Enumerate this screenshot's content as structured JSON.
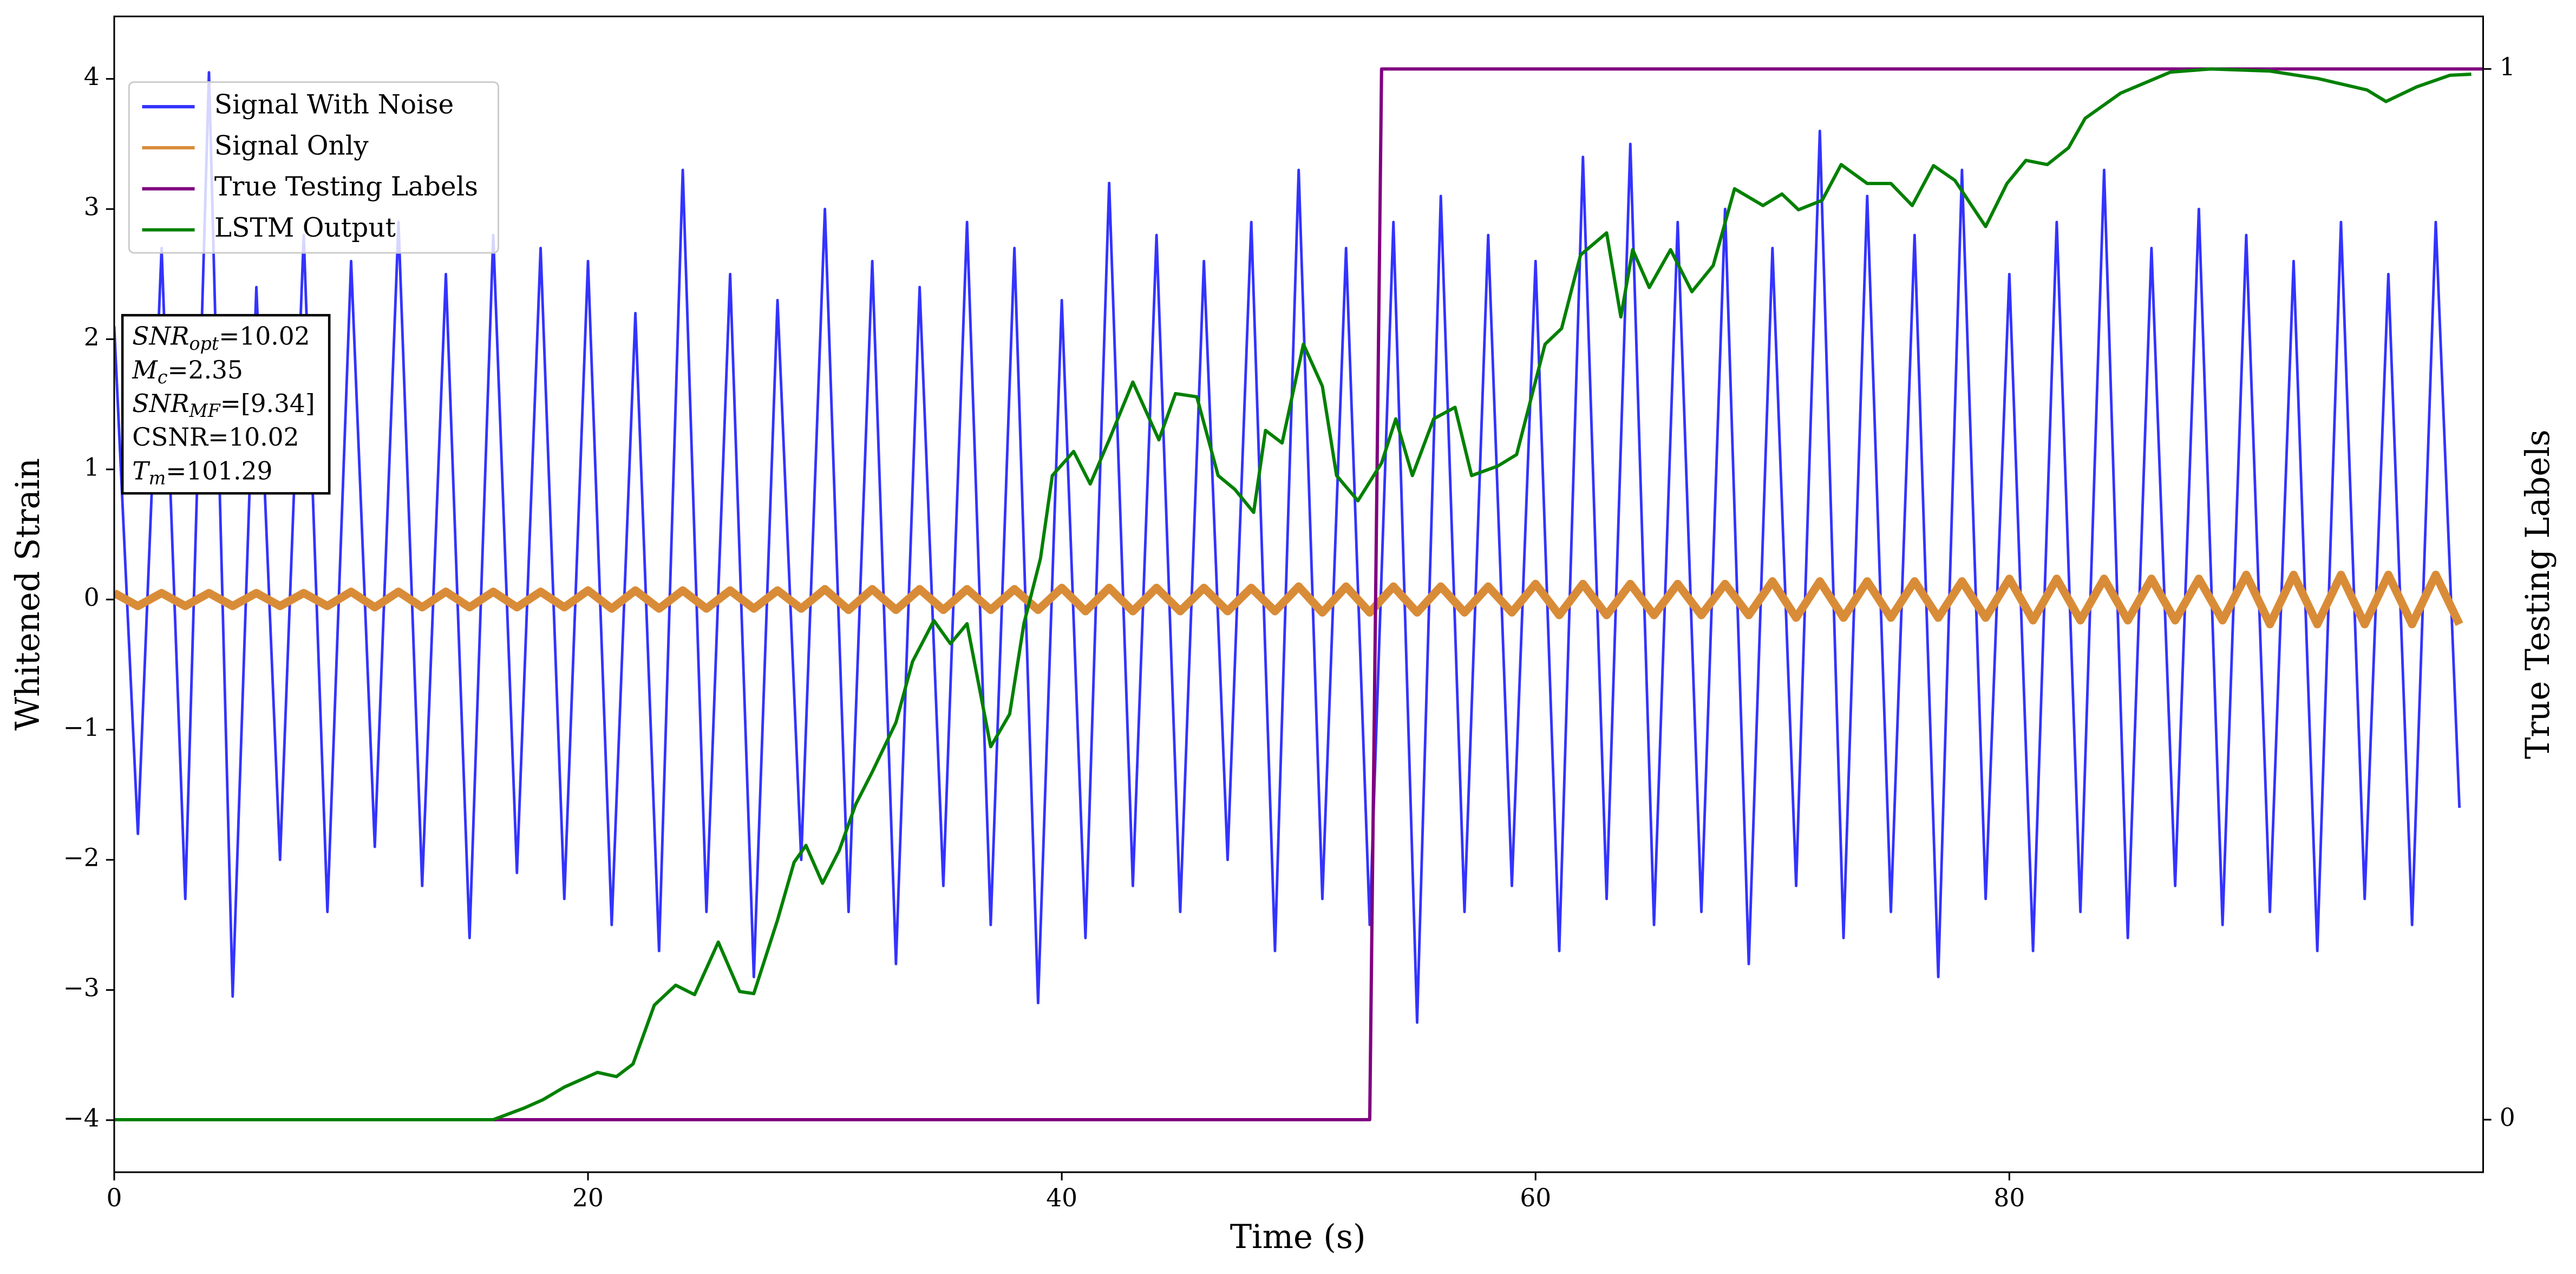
{
  "chart_data": {
    "type": "line",
    "xlabel": "Time (s)",
    "ylabel": "Whitened Strain",
    "y2label": "True Testing Labels",
    "xlim": [
      0,
      100
    ],
    "xticks": [
      0,
      20,
      40,
      60,
      80
    ],
    "ylim": [
      -4.4,
      4.48
    ],
    "yticks": [
      {
        "value": -4,
        "label": "−4"
      },
      {
        "value": -3,
        "label": "−3"
      },
      {
        "value": -2,
        "label": "−2"
      },
      {
        "value": -1,
        "label": "−1"
      },
      0,
      1,
      2,
      3,
      4
    ],
    "y2lim": [
      -0.05,
      1.05
    ],
    "y2ticks": [
      0,
      1
    ],
    "legend": "upper left",
    "annotations": [
      {
        "text": "SNR",
        "sub": "opt",
        "rest": "=10.02"
      },
      {
        "text": "M",
        "sub": "c",
        "rest": "=2.35"
      },
      {
        "text": "SNR",
        "sub": "MF",
        "rest": "=[9.34]"
      },
      {
        "text": "CSNR=10.02"
      },
      {
        "text": "T",
        "sub": "m",
        "rest": "=101.29"
      }
    ],
    "series": [
      {
        "name": "Signal With Noise",
        "color": "#3333ff",
        "x": [
          0,
          1,
          2,
          3,
          4,
          5,
          6,
          7,
          8,
          9,
          10,
          11,
          12,
          13,
          14,
          15,
          16,
          17,
          18,
          19,
          20,
          21,
          22,
          23,
          24,
          25,
          26,
          27,
          28,
          29,
          30,
          31,
          32,
          33,
          34,
          35,
          36,
          37,
          38,
          39,
          40,
          41,
          42,
          43,
          44,
          45,
          46,
          47,
          48,
          49,
          50,
          51,
          52,
          53,
          54,
          55,
          56,
          57,
          58,
          59,
          60,
          61,
          62,
          63,
          64,
          65,
          66,
          67,
          68,
          69,
          70,
          71,
          72,
          73,
          74,
          75,
          76,
          77,
          78,
          79,
          80,
          81,
          82,
          83,
          84,
          85,
          86,
          87,
          88,
          89,
          90,
          91,
          92,
          93,
          94,
          95,
          96,
          97,
          98,
          99
        ],
        "values": [
          2.1,
          -1.8,
          2.7,
          -2.3,
          4.05,
          -3.05,
          2.4,
          -2.0,
          2.8,
          -2.4,
          2.6,
          -1.9,
          2.9,
          -2.2,
          2.5,
          -2.6,
          2.8,
          -2.1,
          2.7,
          -2.3,
          2.6,
          -2.5,
          2.2,
          -2.7,
          3.3,
          -2.4,
          2.5,
          -2.9,
          2.3,
          -2.0,
          3.0,
          -2.4,
          2.6,
          -2.8,
          2.4,
          -2.2,
          2.9,
          -2.5,
          2.7,
          -3.1,
          2.3,
          -2.6,
          3.2,
          -2.2,
          2.8,
          -2.4,
          2.6,
          -2.0,
          2.9,
          -2.7,
          3.3,
          -2.3,
          2.7,
          -2.5,
          2.9,
          -3.25,
          3.1,
          -2.4,
          2.8,
          -2.2,
          2.6,
          -2.7,
          3.4,
          -2.3,
          3.5,
          -2.5,
          2.9,
          -2.4,
          3.0,
          -2.8,
          2.7,
          -2.2,
          3.6,
          -2.6,
          3.1,
          -2.4,
          2.8,
          -2.9,
          3.3,
          -2.3,
          2.5,
          -2.7,
          2.9,
          -2.4,
          3.3,
          -2.6,
          2.7,
          -2.2,
          3.0,
          -2.5,
          2.8,
          -2.4,
          2.6,
          -2.7,
          2.9,
          -2.3,
          2.5,
          -2.5,
          2.9,
          -1.6
        ]
      },
      {
        "name": "Signal Only",
        "color": "#d98c38",
        "x": [
          0,
          1,
          2,
          3,
          4,
          5,
          6,
          7,
          8,
          9,
          10,
          11,
          12,
          13,
          14,
          15,
          16,
          17,
          18,
          19,
          20,
          21,
          22,
          23,
          24,
          25,
          26,
          27,
          28,
          29,
          30,
          31,
          32,
          33,
          34,
          35,
          36,
          37,
          38,
          39,
          40,
          41,
          42,
          43,
          44,
          45,
          46,
          47,
          48,
          49,
          50,
          51,
          52,
          53,
          54,
          55,
          56,
          57,
          58,
          59,
          60,
          61,
          62,
          63,
          64,
          65,
          66,
          67,
          68,
          69,
          70,
          71,
          72,
          73,
          74,
          75,
          76,
          77,
          78,
          79,
          80,
          81,
          82,
          83,
          84,
          85,
          86,
          87,
          88,
          89,
          90,
          91,
          92,
          93,
          94,
          95,
          96,
          97,
          98,
          99
        ],
        "values": [
          0.05,
          -0.05,
          0.05,
          -0.05,
          0.05,
          -0.05,
          0.05,
          -0.05,
          0.05,
          -0.05,
          0.06,
          -0.06,
          0.06,
          -0.06,
          0.06,
          -0.06,
          0.06,
          -0.06,
          0.06,
          -0.06,
          0.07,
          -0.07,
          0.07,
          -0.07,
          0.07,
          -0.07,
          0.07,
          -0.07,
          0.07,
          -0.07,
          0.08,
          -0.08,
          0.08,
          -0.08,
          0.08,
          -0.08,
          0.08,
          -0.08,
          0.08,
          -0.08,
          0.09,
          -0.09,
          0.09,
          -0.09,
          0.09,
          -0.09,
          0.09,
          -0.09,
          0.09,
          -0.09,
          0.1,
          -0.1,
          0.1,
          -0.1,
          0.1,
          -0.1,
          0.1,
          -0.1,
          0.1,
          -0.1,
          0.12,
          -0.12,
          0.12,
          -0.12,
          0.12,
          -0.12,
          0.12,
          -0.12,
          0.12,
          -0.12,
          0.14,
          -0.14,
          0.14,
          -0.14,
          0.14,
          -0.14,
          0.14,
          -0.14,
          0.14,
          -0.14,
          0.16,
          -0.16,
          0.16,
          -0.16,
          0.16,
          -0.16,
          0.16,
          -0.16,
          0.16,
          -0.16,
          0.19,
          -0.19,
          0.19,
          -0.19,
          0.19,
          -0.19,
          0.19,
          -0.19,
          0.19,
          -0.19
        ]
      },
      {
        "name": "True Testing Labels",
        "color": "#800080",
        "axis": "y2",
        "x": [
          0,
          53,
          53.5,
          100
        ],
        "values": [
          0,
          0,
          1,
          1
        ]
      },
      {
        "name": "LSTM Output",
        "color": "#008000",
        "axis": "y2",
        "x": [
          0,
          16,
          17.3,
          18.1,
          19.0,
          20.4,
          21.2,
          21.9,
          22.8,
          23.7,
          24.5,
          25.5,
          26.4,
          27.0,
          28.0,
          28.7,
          29.2,
          29.9,
          30.6,
          31.3,
          32.0,
          33.0,
          33.7,
          34.6,
          35.3,
          36.0,
          37.0,
          37.8,
          38.4,
          39.1,
          39.6,
          40.5,
          41.2,
          42.0,
          43.0,
          44.1,
          44.8,
          45.7,
          46.6,
          47.3,
          48.1,
          48.6,
          49.3,
          50.2,
          51.0,
          51.6,
          52.5,
          53.5,
          54.1,
          54.8,
          55.7,
          56.6,
          57.3,
          58.4,
          59.2,
          60.4,
          61.1,
          61.9,
          63.0,
          63.6,
          64.1,
          64.8,
          65.7,
          66.6,
          67.5,
          68.4,
          69.6,
          70.4,
          71.1,
          72.1,
          72.9,
          74.0,
          75.0,
          75.9,
          76.8,
          77.7,
          79.0,
          79.9,
          80.7,
          81.6,
          82.5,
          83.2,
          84.7,
          86.8,
          88.5,
          91.0,
          93.0,
          95.1,
          95.9,
          97.2,
          98.6,
          99.5
        ],
        "values": [
          0,
          0,
          0.011,
          0.019,
          0.031,
          0.045,
          0.041,
          0.053,
          0.109,
          0.128,
          0.119,
          0.169,
          0.122,
          0.12,
          0.19,
          0.245,
          0.261,
          0.225,
          0.256,
          0.3,
          0.331,
          0.378,
          0.436,
          0.475,
          0.453,
          0.472,
          0.355,
          0.386,
          0.472,
          0.534,
          0.613,
          0.636,
          0.605,
          0.647,
          0.702,
          0.647,
          0.691,
          0.688,
          0.613,
          0.6,
          0.578,
          0.656,
          0.644,
          0.738,
          0.698,
          0.613,
          0.589,
          0.625,
          0.667,
          0.613,
          0.667,
          0.678,
          0.613,
          0.622,
          0.633,
          0.738,
          0.753,
          0.823,
          0.844,
          0.764,
          0.828,
          0.792,
          0.828,
          0.788,
          0.813,
          0.886,
          0.87,
          0.881,
          0.866,
          0.875,
          0.909,
          0.891,
          0.891,
          0.87,
          0.908,
          0.894,
          0.85,
          0.891,
          0.913,
          0.909,
          0.925,
          0.953,
          0.977,
          0.997,
          1.0,
          0.998,
          0.991,
          0.98,
          0.969,
          0.983,
          0.994,
          0.995
        ]
      }
    ]
  }
}
